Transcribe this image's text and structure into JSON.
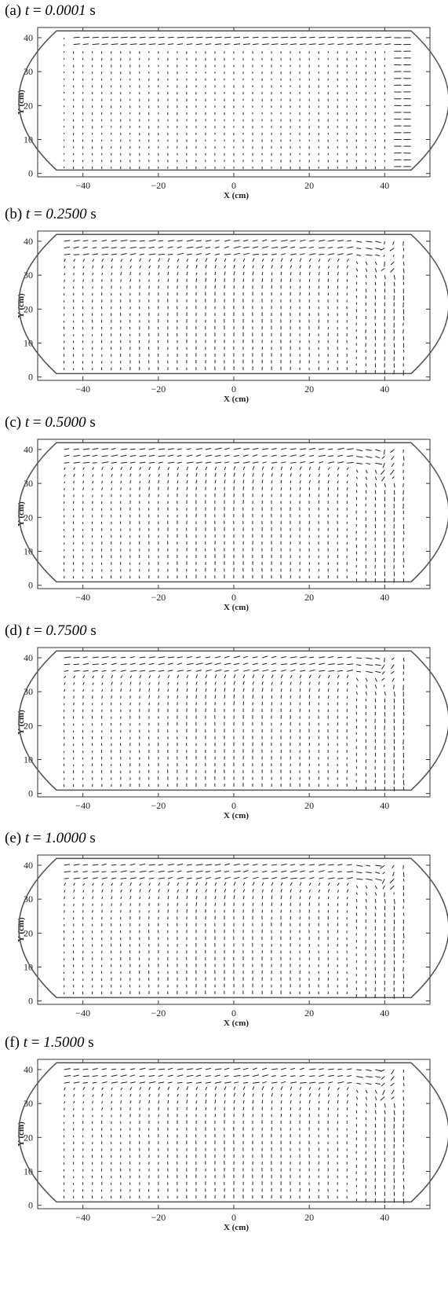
{
  "figure": {
    "panels": [
      {
        "letter": "(a)",
        "t_symbol": "t",
        "equals": "=",
        "time": "0.0001",
        "unit": "s"
      },
      {
        "letter": "(b)",
        "t_symbol": "t",
        "equals": "=",
        "time": "0.2500",
        "unit": "s"
      },
      {
        "letter": "(c)",
        "t_symbol": "t",
        "equals": "=",
        "time": "0.5000",
        "unit": "s"
      },
      {
        "letter": "(d)",
        "t_symbol": "t",
        "equals": "=",
        "time": "0.7500",
        "unit": "s"
      },
      {
        "letter": "(e)",
        "t_symbol": "t",
        "equals": "=",
        "time": "1.0000",
        "unit": "s"
      },
      {
        "letter": "(f)",
        "t_symbol": "t",
        "equals": "=",
        "time": "1.5000",
        "unit": "s"
      }
    ]
  },
  "chart_data": [
    {
      "type": "quiver",
      "panel": "(a)",
      "time_s": 0.0001,
      "xlabel": "X (cm)",
      "ylabel": "Y (cm)",
      "x_ticks": [
        -40,
        -20,
        0,
        20,
        40
      ],
      "y_ticks": [
        0,
        10,
        20,
        30,
        40
      ],
      "xlim": [
        -52,
        52
      ],
      "ylim": [
        -1,
        43
      ],
      "tank": {
        "x_left": -47,
        "x_right": 47,
        "y_bottom": 1,
        "y_top": 42,
        "bulge": 4
      },
      "grid": {
        "dx": 2.5,
        "dy": 2,
        "x_from": -45,
        "x_to": 45,
        "y_from": 2,
        "y_to": 41
      },
      "flow_pattern": "near-uniform small vertical field, stronger horizontal flow along the top and at the right wall"
    },
    {
      "type": "quiver",
      "panel": "(b)",
      "time_s": 0.25,
      "xlabel": "X (cm)",
      "ylabel": "Y (cm)",
      "x_ticks": [
        -40,
        -20,
        0,
        20,
        40
      ],
      "y_ticks": [
        0,
        10,
        20,
        30,
        40
      ],
      "xlim": [
        -52,
        52
      ],
      "ylim": [
        -1,
        43
      ],
      "tank": {
        "x_left": -47,
        "x_right": 47,
        "y_bottom": 1,
        "y_top": 42,
        "bulge": 4
      },
      "grid": {
        "dx": 2.5,
        "dy": 2,
        "x_from": -45,
        "x_to": 45,
        "y_from": 2,
        "y_to": 41
      },
      "flow_pattern": "clockwise circulation: rightward flow along the top, downward near the right wall, upward on the left"
    },
    {
      "type": "quiver",
      "panel": "(c)",
      "time_s": 0.5,
      "xlabel": "X (cm)",
      "ylabel": "Y (cm)",
      "x_ticks": [
        -40,
        -20,
        0,
        20,
        40
      ],
      "y_ticks": [
        0,
        10,
        20,
        30,
        40
      ],
      "xlim": [
        -52,
        52
      ],
      "ylim": [
        -1,
        43
      ],
      "tank": {
        "x_left": -47,
        "x_right": 47,
        "y_bottom": 1,
        "y_top": 42,
        "bulge": 4
      },
      "grid": {
        "dx": 2.5,
        "dy": 2,
        "x_from": -45,
        "x_to": 45,
        "y_from": 2,
        "y_to": 41
      },
      "flow_pattern": "clockwise circulation with vortex in upper right corner"
    },
    {
      "type": "quiver",
      "panel": "(d)",
      "time_s": 0.75,
      "xlabel": "X (cm)",
      "ylabel": "Y (cm)",
      "x_ticks": [
        -40,
        -20,
        0,
        20,
        40
      ],
      "y_ticks": [
        0,
        10,
        20,
        30,
        40
      ],
      "xlim": [
        -52,
        52
      ],
      "ylim": [
        -1,
        43
      ],
      "tank": {
        "x_left": -47,
        "x_right": 47,
        "y_bottom": 1,
        "y_top": 42,
        "bulge": 4
      },
      "grid": {
        "dx": 2.5,
        "dy": 2,
        "x_from": -45,
        "x_to": 45,
        "y_from": 2,
        "y_to": 41
      },
      "flow_pattern": "clockwise circulation with vortex in upper right corner"
    },
    {
      "type": "quiver",
      "panel": "(e)",
      "time_s": 1.0,
      "xlabel": "X (cm)",
      "ylabel": "Y (cm)",
      "x_ticks": [
        -40,
        -20,
        0,
        20,
        40
      ],
      "y_ticks": [
        0,
        10,
        20,
        30,
        40
      ],
      "xlim": [
        -52,
        52
      ],
      "ylim": [
        -1,
        43
      ],
      "tank": {
        "x_left": -47,
        "x_right": 47,
        "y_bottom": 1,
        "y_top": 42,
        "bulge": 4
      },
      "grid": {
        "dx": 2.5,
        "dy": 2,
        "x_from": -45,
        "x_to": 45,
        "y_from": 2,
        "y_to": 41
      },
      "flow_pattern": "clockwise circulation with vortex in upper right corner"
    },
    {
      "type": "quiver",
      "panel": "(f)",
      "time_s": 1.5,
      "xlabel": "X (cm)",
      "ylabel": "Y (cm)",
      "x_ticks": [
        -40,
        -20,
        0,
        20,
        40
      ],
      "y_ticks": [
        0,
        10,
        20,
        30,
        40
      ],
      "xlim": [
        -52,
        52
      ],
      "ylim": [
        -1,
        43
      ],
      "tank": {
        "x_left": -47,
        "x_right": 47,
        "y_bottom": 1,
        "y_top": 42,
        "bulge": 4
      },
      "grid": {
        "dx": 2.5,
        "dy": 2,
        "x_from": -45,
        "x_to": 45,
        "y_from": 2,
        "y_to": 41
      },
      "flow_pattern": "clockwise circulation with vortex in upper right corner"
    }
  ]
}
